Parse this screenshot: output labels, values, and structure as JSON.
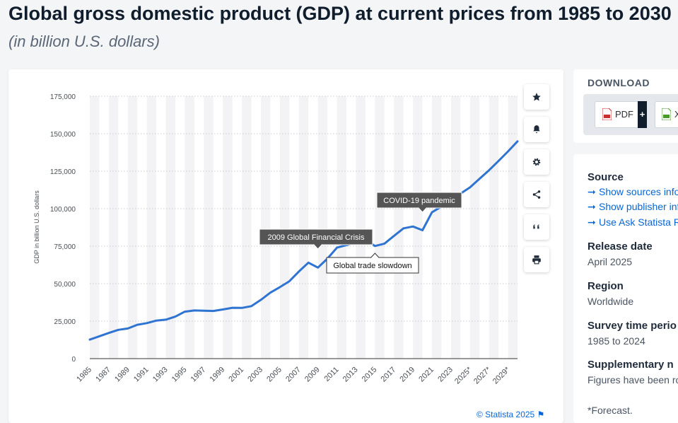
{
  "title": "Global gross domestic product (GDP) at current prices from 1985 to 2030",
  "subtitle": "(in billion U.S. dollars)",
  "credit": "© Statista 2025",
  "download": {
    "title": "DOWNLOAD",
    "pdf_label": "PDF",
    "pdf_plus": "+",
    "xls_label": "X"
  },
  "info": {
    "source_heading": "Source",
    "links": [
      "Show sources info",
      "Show publisher info",
      "Use Ask Statista R"
    ],
    "release_heading": "Release date",
    "release_value": "April 2025",
    "region_heading": "Region",
    "region_value": "Worldwide",
    "survey_heading": "Survey time perio",
    "survey_value": "1985 to 2024",
    "supp_heading": "Supplementary n",
    "supp_value": "Figures have been ro",
    "forecast_note": "*Forecast."
  },
  "toolbar": {
    "icons": [
      "star-icon",
      "bell-icon",
      "gear-icon",
      "share-icon",
      "quote-icon",
      "print-icon"
    ]
  },
  "colors": {
    "line": "#2f74d0",
    "annotation_dark": "#555555",
    "link": "#0666d6"
  },
  "chart_data": {
    "type": "line",
    "ylabel": "GDP in billion U.S. dollars",
    "xlabel": "",
    "ylim": [
      0,
      175000
    ],
    "yticks": [
      0,
      25000,
      50000,
      75000,
      100000,
      125000,
      150000,
      175000
    ],
    "ytick_labels": [
      "0",
      "25,000",
      "50,000",
      "75,000",
      "100,000",
      "125,000",
      "150,000",
      "175,000"
    ],
    "grid": true,
    "x": [
      "1985",
      "1986",
      "1987",
      "1988",
      "1989",
      "1990",
      "1991",
      "1992",
      "1993",
      "1994",
      "1995",
      "1996",
      "1997",
      "1998",
      "1999",
      "2000",
      "2001",
      "2002",
      "2003",
      "2004",
      "2005",
      "2006",
      "2007",
      "2008",
      "2009",
      "2010",
      "2011",
      "2012",
      "2013",
      "2014",
      "2015",
      "2016",
      "2017",
      "2018",
      "2019",
      "2020",
      "2021",
      "2022",
      "2023",
      "2024",
      "2025*",
      "2026*",
      "2027*",
      "2028*",
      "2029*",
      "2030*"
    ],
    "xtick_labels": [
      "1985",
      "1987",
      "1989",
      "1991",
      "1993",
      "1995",
      "1997",
      "1999",
      "2001",
      "2003",
      "2005",
      "2007",
      "2009",
      "2011",
      "2013",
      "2015",
      "2017",
      "2019",
      "2021",
      "2023",
      "2025*",
      "2027*",
      "2029*"
    ],
    "series": [
      {
        "values": [
          12700,
          14900,
          17100,
          19200,
          20100,
          22600,
          23700,
          25400,
          26000,
          28000,
          31300,
          32100,
          32000,
          31800,
          32800,
          33900,
          33800,
          35000,
          39200,
          44000,
          47700,
          51600,
          58100,
          64000,
          60700,
          66700,
          74000,
          75700,
          77400,
          79700,
          75100,
          76700,
          81800,
          86900,
          88100,
          85600,
          97600,
          101300,
          105100,
          110000,
          114200,
          119900,
          125600,
          131800,
          138200,
          144900
        ]
      }
    ],
    "annotations": [
      {
        "text": "2009 Global Financial Crisis",
        "x": "2009",
        "style": "dark"
      },
      {
        "text": "Global trade slowdown",
        "x": "2015",
        "style": "light"
      },
      {
        "text": "COVID-19 pandemic",
        "x": "2020",
        "style": "dark"
      }
    ]
  }
}
